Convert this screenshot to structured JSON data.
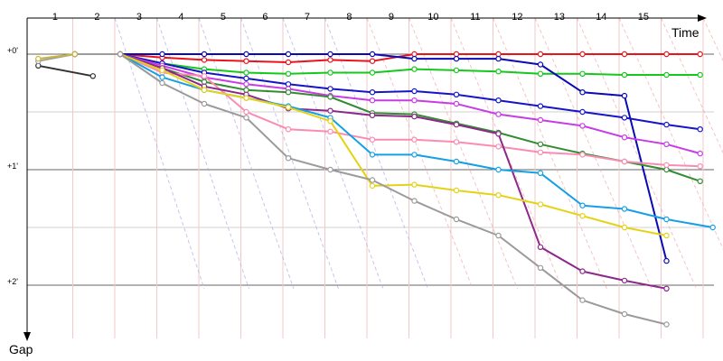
{
  "chart_data": {
    "type": "line",
    "xlabel": "Time",
    "ylabel": "Gap",
    "lap_labels": [
      "1",
      "2",
      "3",
      "4",
      "5",
      "6",
      "7",
      "8",
      "9",
      "10",
      "11",
      "12",
      "13",
      "14",
      "15"
    ],
    "gap_ticks": [
      "+0'",
      "+1'",
      "+2'"
    ],
    "ylim": [
      0,
      2.45
    ],
    "grid": true,
    "series": [
      {
        "color": "#e8141c",
        "points": [
          [
            0.92,
            0
          ],
          [
            2,
            0
          ],
          [
            3,
            0.03
          ],
          [
            4,
            0.05
          ],
          [
            5,
            0.06
          ],
          [
            6,
            0.07
          ],
          [
            7,
            0.05
          ],
          [
            8,
            0.06
          ],
          [
            9,
            0
          ],
          [
            10,
            0
          ],
          [
            11,
            0
          ],
          [
            12,
            0
          ],
          [
            13,
            0
          ],
          [
            14,
            0
          ],
          [
            15,
            0
          ],
          [
            15.8,
            0
          ]
        ]
      },
      {
        "color": "#14c81c",
        "points": [
          [
            0.92,
            0
          ],
          [
            2,
            0
          ],
          [
            3,
            0.08
          ],
          [
            4,
            0.13
          ],
          [
            5,
            0.16
          ],
          [
            6,
            0.17
          ],
          [
            7,
            0.16
          ],
          [
            8,
            0.16
          ],
          [
            9,
            0.13
          ],
          [
            10,
            0.14
          ],
          [
            11,
            0.15
          ],
          [
            12,
            0.17
          ],
          [
            13,
            0.17
          ],
          [
            14,
            0.18
          ],
          [
            15,
            0.18
          ],
          [
            15.8,
            0.18
          ]
        ]
      },
      {
        "color": "#0a0ab4",
        "points": [
          [
            0.92,
            0
          ],
          [
            2,
            0
          ],
          [
            3,
            0
          ],
          [
            4,
            0
          ],
          [
            5,
            0
          ],
          [
            6,
            0
          ],
          [
            7,
            0
          ],
          [
            8,
            0
          ],
          [
            9,
            0.04
          ],
          [
            10,
            0.04
          ],
          [
            11,
            0.04
          ],
          [
            12,
            0.09
          ],
          [
            13,
            0.33
          ],
          [
            14,
            0.36
          ],
          [
            15,
            1.79
          ]
        ]
      },
      {
        "color": "#1414c8",
        "points": [
          [
            0.92,
            0
          ],
          [
            2,
            0
          ],
          [
            3,
            0.08
          ],
          [
            4,
            0.16
          ],
          [
            5,
            0.21
          ],
          [
            6,
            0.26
          ],
          [
            7,
            0.3
          ],
          [
            8,
            0.33
          ],
          [
            9,
            0.32
          ],
          [
            10,
            0.35
          ],
          [
            11,
            0.4
          ],
          [
            12,
            0.45
          ],
          [
            13,
            0.5
          ],
          [
            14,
            0.55
          ],
          [
            15,
            0.61
          ],
          [
            15.8,
            0.65
          ]
        ]
      },
      {
        "color": "#c83ce6",
        "points": [
          [
            0.92,
            0
          ],
          [
            2,
            0
          ],
          [
            3,
            0.1
          ],
          [
            4,
            0.2
          ],
          [
            5,
            0.26
          ],
          [
            6,
            0.3
          ],
          [
            7,
            0.36
          ],
          [
            8,
            0.4
          ],
          [
            9,
            0.4
          ],
          [
            10,
            0.43
          ],
          [
            11,
            0.52
          ],
          [
            12,
            0.57
          ],
          [
            13,
            0.62
          ],
          [
            14,
            0.72
          ],
          [
            15,
            0.78
          ],
          [
            15.8,
            0.86
          ]
        ]
      },
      {
        "color": "#328c32",
        "points": [
          [
            0.92,
            0
          ],
          [
            2,
            0
          ],
          [
            3,
            0.12
          ],
          [
            4,
            0.24
          ],
          [
            5,
            0.31
          ],
          [
            6,
            0.33
          ],
          [
            7,
            0.37
          ],
          [
            8,
            0.51
          ],
          [
            9,
            0.52
          ],
          [
            10,
            0.6
          ],
          [
            11,
            0.68
          ],
          [
            12,
            0.78
          ],
          [
            13,
            0.86
          ],
          [
            14,
            0.93
          ],
          [
            15,
            1.0
          ],
          [
            15.8,
            1.1
          ]
        ]
      },
      {
        "color": "#fa8cb4",
        "points": [
          [
            0.92,
            0
          ],
          [
            2,
            0
          ],
          [
            3,
            0.16
          ],
          [
            4,
            0.19
          ],
          [
            5,
            0.5
          ],
          [
            6,
            0.65
          ],
          [
            7,
            0.67
          ],
          [
            8,
            0.74
          ],
          [
            9,
            0.74
          ],
          [
            10,
            0.76
          ],
          [
            11,
            0.8
          ],
          [
            12,
            0.85
          ],
          [
            13,
            0.87
          ],
          [
            14,
            0.93
          ],
          [
            15,
            0.96
          ],
          [
            15.8,
            0.97
          ]
        ]
      },
      {
        "color": "#8c288c",
        "points": [
          [
            0.92,
            0
          ],
          [
            2,
            0
          ],
          [
            3,
            0.12
          ],
          [
            4,
            0.28
          ],
          [
            5,
            0.35
          ],
          [
            6,
            0.47
          ],
          [
            7,
            0.49
          ],
          [
            8,
            0.53
          ],
          [
            9,
            0.54
          ],
          [
            10,
            0.61
          ],
          [
            11,
            0.69
          ],
          [
            12,
            1.67
          ],
          [
            13,
            1.88
          ],
          [
            14,
            1.96
          ],
          [
            15,
            2.03
          ]
        ]
      },
      {
        "color": "#14a0e6",
        "points": [
          [
            0.92,
            0
          ],
          [
            2,
            0
          ],
          [
            3,
            0.2
          ],
          [
            4,
            0.31
          ],
          [
            5,
            0.38
          ],
          [
            6,
            0.45
          ],
          [
            7,
            0.55
          ],
          [
            8,
            0.87
          ],
          [
            9,
            0.87
          ],
          [
            10,
            0.93
          ],
          [
            11,
            1.0
          ],
          [
            12,
            1.03
          ],
          [
            13,
            1.31
          ],
          [
            14,
            1.34
          ],
          [
            15,
            1.43
          ],
          [
            16.1,
            1.5
          ]
        ]
      },
      {
        "color": "#e6d214",
        "points": [
          [
            0.92,
            0
          ],
          [
            2,
            0
          ],
          [
            3,
            0.14
          ],
          [
            4,
            0.31
          ],
          [
            5,
            0.38
          ],
          [
            6,
            0.46
          ],
          [
            7,
            0.58
          ],
          [
            8,
            1.14
          ],
          [
            9,
            1.13
          ],
          [
            10,
            1.18
          ],
          [
            11,
            1.22
          ],
          [
            12,
            1.3
          ],
          [
            13,
            1.4
          ],
          [
            14,
            1.5
          ],
          [
            15,
            1.57
          ]
        ]
      },
      {
        "color": "#9b9b9b",
        "points": [
          [
            0.92,
            0
          ],
          [
            2,
            0
          ],
          [
            3,
            0.25
          ],
          [
            4,
            0.43
          ],
          [
            5,
            0.55
          ],
          [
            6,
            0.9
          ],
          [
            7,
            1.0
          ],
          [
            8,
            1.09
          ],
          [
            9,
            1.27
          ],
          [
            10,
            1.43
          ],
          [
            11,
            1.57
          ],
          [
            12,
            1.85
          ],
          [
            13,
            2.13
          ],
          [
            14,
            2.25
          ],
          [
            15,
            2.34
          ]
        ]
      },
      {
        "color": "#323232",
        "points": [
          [
            0.05,
            0.1
          ],
          [
            1.35,
            0.19
          ]
        ]
      },
      {
        "color": "#a0a0a0",
        "points": [
          [
            0.05,
            0.06
          ],
          [
            0.92,
            0
          ]
        ]
      },
      {
        "color": "#c8b43c",
        "points": [
          [
            0.05,
            0.04
          ],
          [
            0.92,
            0
          ]
        ]
      }
    ]
  }
}
